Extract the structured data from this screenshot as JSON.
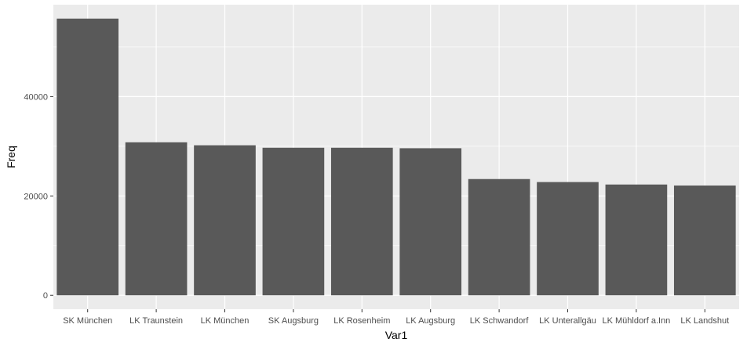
{
  "chart_data": {
    "type": "bar",
    "xlabel": "Var1",
    "ylabel": "Freq",
    "categories": [
      "SK München",
      "LK Traunstein",
      "LK München",
      "SK Augsburg",
      "LK Rosenheim",
      "LK Augsburg",
      "LK Schwandorf",
      "LK Unterallgäu",
      "LK Mühldorf a.Inn",
      "LK Landshut"
    ],
    "values": [
      55700,
      30800,
      30200,
      29700,
      29700,
      29600,
      23400,
      22800,
      22300,
      22100
    ],
    "ylim": [
      -2800,
      58500
    ],
    "yticks": [
      0,
      20000,
      40000
    ],
    "ytick_labels": [
      "0",
      "20000",
      "40000"
    ],
    "grid": true,
    "bar_color": "#595959",
    "panel_color": "#ebebeb",
    "grid_color": "#ffffff"
  }
}
